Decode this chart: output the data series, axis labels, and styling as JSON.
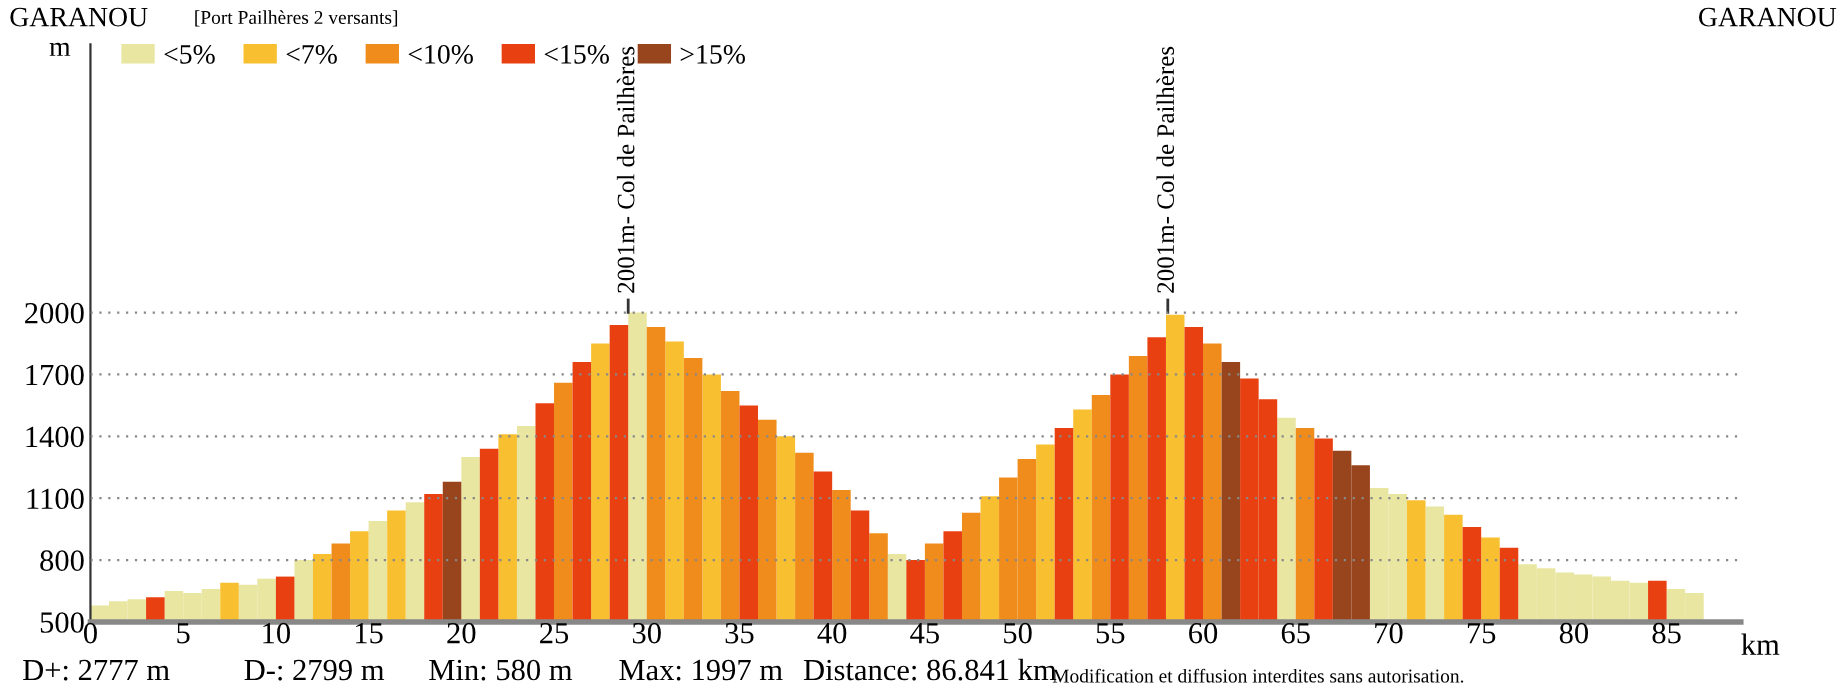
{
  "chart_data": {
    "type": "bar",
    "title": "GARANOU",
    "subtitle": "[Port Pailhères 2 versants]",
    "ylabel": "m",
    "xlabel": "km",
    "x": [
      0,
      1,
      2,
      3,
      4,
      5,
      6,
      7,
      8,
      9,
      10,
      11,
      12,
      13,
      14,
      15,
      16,
      17,
      18,
      19,
      20,
      21,
      22,
      23,
      24,
      25,
      26,
      27,
      28,
      29,
      30,
      31,
      32,
      33,
      34,
      35,
      36,
      37,
      38,
      39,
      40,
      41,
      42,
      43,
      44,
      45,
      46,
      47,
      48,
      49,
      50,
      51,
      52,
      53,
      54,
      55,
      56,
      57,
      58,
      59,
      60,
      61,
      62,
      63,
      64,
      65,
      66,
      67,
      68,
      69,
      70,
      71,
      72,
      73,
      74,
      75,
      76,
      77,
      78,
      79,
      80,
      81,
      82,
      83,
      84,
      85,
      86
    ],
    "series": [
      {
        "name": "<5%",
        "color": "#e8e6a0",
        "values": [
          580,
          600,
          610,
          null,
          650,
          640,
          660,
          null,
          680,
          710,
          null,
          800,
          null,
          null,
          null,
          990,
          null,
          1080,
          null,
          null,
          1300,
          null,
          null,
          1450,
          null,
          null,
          null,
          null,
          null,
          2000,
          null,
          null,
          null,
          null,
          null,
          null,
          null,
          null,
          null,
          null,
          null,
          null,
          null,
          830,
          null,
          null,
          null,
          null,
          null,
          null,
          null,
          null,
          null,
          null,
          null,
          null,
          null,
          null,
          null,
          null,
          null,
          null,
          null,
          null,
          1490,
          null,
          null,
          null,
          null,
          1150,
          1120,
          null,
          1060,
          null,
          null,
          null,
          null,
          780,
          760,
          740,
          730,
          720,
          700,
          690,
          null,
          660,
          640
        ]
      },
      {
        "name": "<7%",
        "color": "#f8c030",
        "values": [
          null,
          null,
          null,
          null,
          null,
          null,
          null,
          690,
          null,
          null,
          null,
          null,
          830,
          null,
          940,
          null,
          1040,
          null,
          null,
          null,
          null,
          null,
          1410,
          null,
          null,
          null,
          null,
          1850,
          null,
          null,
          null,
          1860,
          null,
          1700,
          null,
          null,
          null,
          1400,
          null,
          null,
          null,
          null,
          null,
          null,
          null,
          null,
          null,
          null,
          1110,
          null,
          null,
          1360,
          null,
          1530,
          null,
          null,
          null,
          null,
          1990,
          null,
          null,
          null,
          null,
          null,
          null,
          null,
          null,
          null,
          null,
          null,
          null,
          1090,
          null,
          1020,
          null,
          910,
          null,
          null,
          null,
          null,
          null,
          null,
          null,
          null,
          null,
          null,
          null
        ]
      },
      {
        "name": "<10%",
        "color": "#f08c1c",
        "values": [
          null,
          null,
          null,
          null,
          null,
          null,
          null,
          null,
          null,
          null,
          null,
          null,
          null,
          880,
          null,
          null,
          null,
          null,
          null,
          null,
          null,
          null,
          null,
          null,
          null,
          1660,
          null,
          null,
          null,
          null,
          1930,
          null,
          1780,
          null,
          1620,
          null,
          1480,
          null,
          1320,
          null,
          1140,
          null,
          930,
          null,
          null,
          880,
          null,
          1030,
          null,
          1200,
          1290,
          null,
          null,
          null,
          1600,
          null,
          1790,
          null,
          null,
          null,
          1850,
          null,
          null,
          null,
          null,
          1440,
          null,
          null,
          null,
          null,
          null,
          null,
          null,
          null,
          null,
          null,
          null,
          null,
          null,
          null,
          null,
          null,
          null,
          null,
          null,
          null,
          null
        ]
      },
      {
        "name": "<15%",
        "color": "#e84010",
        "values": [
          null,
          null,
          null,
          620,
          null,
          null,
          null,
          null,
          null,
          null,
          720,
          null,
          null,
          null,
          null,
          null,
          null,
          null,
          1120,
          null,
          null,
          1340,
          null,
          null,
          1560,
          null,
          1760,
          null,
          1940,
          null,
          null,
          null,
          null,
          null,
          null,
          1550,
          null,
          null,
          null,
          1230,
          null,
          1040,
          null,
          null,
          800,
          null,
          940,
          null,
          null,
          null,
          null,
          null,
          1440,
          null,
          null,
          1700,
          null,
          1880,
          null,
          1930,
          null,
          null,
          1680,
          1580,
          null,
          null,
          1390,
          null,
          null,
          null,
          null,
          null,
          null,
          null,
          960,
          null,
          860,
          null,
          null,
          null,
          null,
          null,
          null,
          null,
          700,
          null,
          null
        ]
      },
      {
        "name": ">15%",
        "color": "#98441c",
        "values": [
          null,
          null,
          null,
          null,
          null,
          null,
          null,
          null,
          null,
          null,
          null,
          null,
          null,
          null,
          null,
          null,
          null,
          null,
          null,
          1180,
          null,
          null,
          null,
          null,
          null,
          null,
          null,
          null,
          null,
          null,
          null,
          null,
          null,
          null,
          null,
          null,
          null,
          null,
          null,
          null,
          null,
          null,
          null,
          null,
          null,
          null,
          null,
          null,
          null,
          null,
          null,
          null,
          null,
          null,
          null,
          null,
          null,
          null,
          null,
          null,
          null,
          1760,
          null,
          null,
          null,
          null,
          null,
          1330,
          1260,
          null,
          null,
          null,
          null,
          null,
          null,
          null,
          null,
          null,
          null,
          null,
          null,
          null,
          null,
          null,
          null,
          null,
          null
        ]
      }
    ],
    "xlim": [
      0,
      89
    ],
    "xticks": [
      0,
      5,
      10,
      15,
      20,
      25,
      30,
      35,
      40,
      45,
      50,
      55,
      60,
      65,
      70,
      75,
      80,
      85
    ],
    "ylim": [
      500,
      3300
    ],
    "yticks": [
      500,
      800,
      1100,
      1400,
      1700,
      2000
    ],
    "grid": "y",
    "legend": "top left",
    "annotations": [
      "GARANOU",
      {
        "text": "2001m- Col de Pailhères",
        "x": 29,
        "y": 2001
      },
      {
        "text": "2001m- Col de Pailhères",
        "x": 58.1,
        "y": 2001
      },
      "D+: 2777 m",
      "D-: 2799 m",
      "Min: 580 m",
      "Max: 1997 m",
      "Distance: 86.841 km",
      "Modification et diffusion interdites sans autorisation."
    ]
  }
}
